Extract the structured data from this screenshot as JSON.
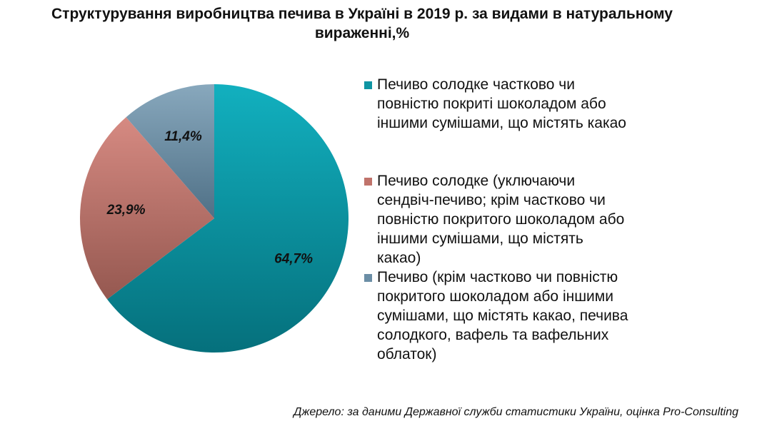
{
  "chart_data": {
    "type": "pie",
    "title": "Структурування виробництва печива в Україні в 2019 р. за видами в натуральному вираженні,%",
    "title_lines": [
      "Структурування виробництва печива в Україні в 2019 р. за видами в натуральному",
      "вираженні,%"
    ],
    "legend_position": "right",
    "slices": [
      {
        "label": "Печиво солодке частково чи повністю покриті шоколадом або іншими сумішами, що містять какао",
        "label_lines": [
          "Печиво солодке частково чи",
          "повністю покриті шоколадом або",
          "іншими сумішами, що містять какао"
        ],
        "value": 64.7,
        "data_label": "64,7%",
        "color": "#0f95a3"
      },
      {
        "label": "Печиво солодке (уключаючи сендвіч-печиво; крім частково чи повністю покритого шоколадом або іншими сумішами, що містять какао)",
        "label_lines": [
          "Печиво солодке (уключаючи",
          "сендвіч-печиво; крім частково чи",
          "повністю покритого шоколадом або",
          "іншими сумішами, що містять",
          "какао)"
        ],
        "value": 23.9,
        "data_label": "23,9%",
        "color": "#c0736b"
      },
      {
        "label": "Печиво (крім частково чи повністю покритого шоколадом або іншими сумішами, що містять какао, печива солодкого, вафель та вафельних облаток)",
        "label_lines": [
          "Печиво (крім частково чи повністю",
          "покритого шоколадом або іншими",
          "сумішами, що містять какао, печива",
          "солодкого, вафель та вафельних",
          "облаток)"
        ],
        "value": 11.4,
        "data_label": "11,4%",
        "color": "#6b8ea6"
      }
    ]
  },
  "source": "Джерело: за даними Державної служби статистики України, оцінка Pro-Consulting"
}
